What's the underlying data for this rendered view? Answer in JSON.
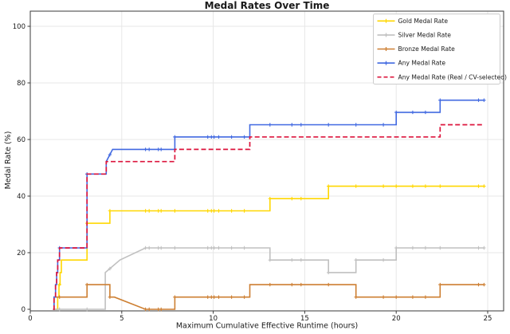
{
  "chart_data": {
    "type": "line",
    "title": "Medal Rates Over Time",
    "xlabel": "Maximum Cumulative Effective Runtime (hours)",
    "ylabel": "Medal Rate (%)",
    "xlim": [
      0,
      25.9
    ],
    "ylim": [
      -0.6,
      105.4
    ],
    "x_ticks": [
      0,
      5,
      10,
      15,
      20,
      25
    ],
    "y_ticks": [
      0,
      20,
      40,
      60,
      80,
      100
    ],
    "grid": true,
    "legend_position": "upper right",
    "marker_xs": [
      1.6,
      3.1,
      4.35,
      6.3,
      6.5,
      7.0,
      7.15,
      7.9,
      9.7,
      9.9,
      10.05,
      10.3,
      11.0,
      11.7,
      13.1,
      14.3,
      14.8,
      16.3,
      17.8,
      19.3,
      20.0,
      20.9,
      21.6,
      22.4,
      24.5,
      24.8
    ],
    "series": [
      {
        "name": "Gold Medal Rate",
        "color": "#FFD700",
        "style": "solid",
        "markers": true,
        "points": [
          [
            1.25,
            0
          ],
          [
            1.5,
            4.3
          ],
          [
            1.57,
            8.7
          ],
          [
            1.63,
            13.0
          ],
          [
            1.7,
            17.4
          ],
          [
            3.1,
            30.4
          ],
          [
            4.35,
            34.8
          ],
          [
            13.1,
            39.1
          ],
          [
            16.3,
            43.5
          ],
          [
            24.8,
            43.5
          ]
        ]
      },
      {
        "name": "Silver Medal Rate",
        "color": "#C0C0C0",
        "style": "solid",
        "markers": true,
        "points": [
          [
            1.25,
            0
          ],
          [
            4.1,
            13.0
          ],
          [
            4.9,
            17.4,
            "l"
          ],
          [
            6.3,
            21.7,
            "l"
          ],
          [
            13.1,
            17.4
          ],
          [
            16.3,
            13.0
          ],
          [
            17.8,
            17.4
          ],
          [
            20.0,
            21.7
          ],
          [
            24.8,
            21.7
          ]
        ]
      },
      {
        "name": "Bronze Medal Rate",
        "color": "#CD7F32",
        "style": "solid",
        "markers": true,
        "points": [
          [
            1.25,
            0
          ],
          [
            1.3,
            4.3
          ],
          [
            3.1,
            8.7
          ],
          [
            4.35,
            4.3
          ],
          [
            4.6,
            4.3
          ],
          [
            6.3,
            0,
            "l"
          ],
          [
            7.9,
            4.3
          ],
          [
            12.0,
            8.7
          ],
          [
            17.8,
            4.3
          ],
          [
            22.4,
            8.7
          ],
          [
            24.8,
            8.7
          ]
        ]
      },
      {
        "name": "Any Medal Rate",
        "color": "#4169E1",
        "style": "solid",
        "markers": true,
        "points": [
          [
            1.25,
            0
          ],
          [
            1.3,
            4.3
          ],
          [
            1.38,
            8.7
          ],
          [
            1.44,
            13.0
          ],
          [
            1.5,
            17.4
          ],
          [
            1.6,
            21.7
          ],
          [
            3.1,
            47.8
          ],
          [
            4.15,
            52.2
          ],
          [
            4.5,
            56.5,
            "l"
          ],
          [
            7.9,
            60.9
          ],
          [
            12.0,
            65.2
          ],
          [
            20.0,
            69.6
          ],
          [
            22.4,
            73.9
          ],
          [
            24.8,
            73.9
          ]
        ]
      },
      {
        "name": "Any Medal Rate (Real / CV-selected)",
        "color": "#DC143C",
        "style": "dashed",
        "markers": false,
        "points": [
          [
            1.25,
            0
          ],
          [
            1.3,
            4.3
          ],
          [
            1.38,
            8.7
          ],
          [
            1.44,
            13.0
          ],
          [
            1.5,
            17.4
          ],
          [
            1.6,
            21.7
          ],
          [
            3.1,
            47.8
          ],
          [
            4.15,
            52.2
          ],
          [
            7.9,
            56.5
          ],
          [
            12.0,
            60.9
          ],
          [
            22.4,
            65.2
          ],
          [
            24.8,
            65.2
          ]
        ]
      }
    ],
    "style": {
      "grid_color": "#e7e7e7",
      "spine_color": "#3a3a3a",
      "legend_border_color": "#cccccc",
      "background": "#ffffff"
    }
  }
}
